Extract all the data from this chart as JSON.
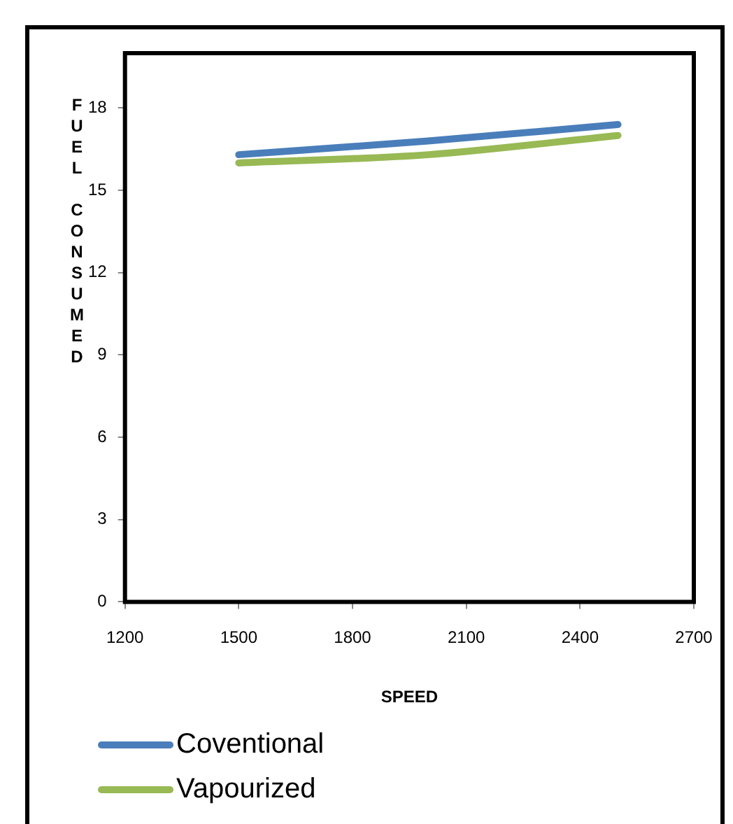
{
  "chart_data": {
    "type": "line",
    "xlabel": "SPEED",
    "ylabel": "FUEL CONSUMED",
    "x": [
      1500,
      2000,
      2500
    ],
    "series": [
      {
        "name": "Coventional",
        "color": "#4a7ebb",
        "values": [
          16.3,
          16.8,
          17.4
        ]
      },
      {
        "name": "Vapourized",
        "color": "#98b954",
        "values": [
          16.0,
          16.3,
          17.0
        ]
      }
    ],
    "xlim": [
      1200,
      2700
    ],
    "xticks": [
      1200,
      1500,
      1800,
      2100,
      2400,
      2700
    ],
    "ylim": [
      0,
      20
    ],
    "yticks": [
      0,
      3,
      6,
      9,
      12,
      15,
      18
    ],
    "grid": false,
    "legend": "bottom",
    "marker": "none",
    "line_style": "solid"
  }
}
